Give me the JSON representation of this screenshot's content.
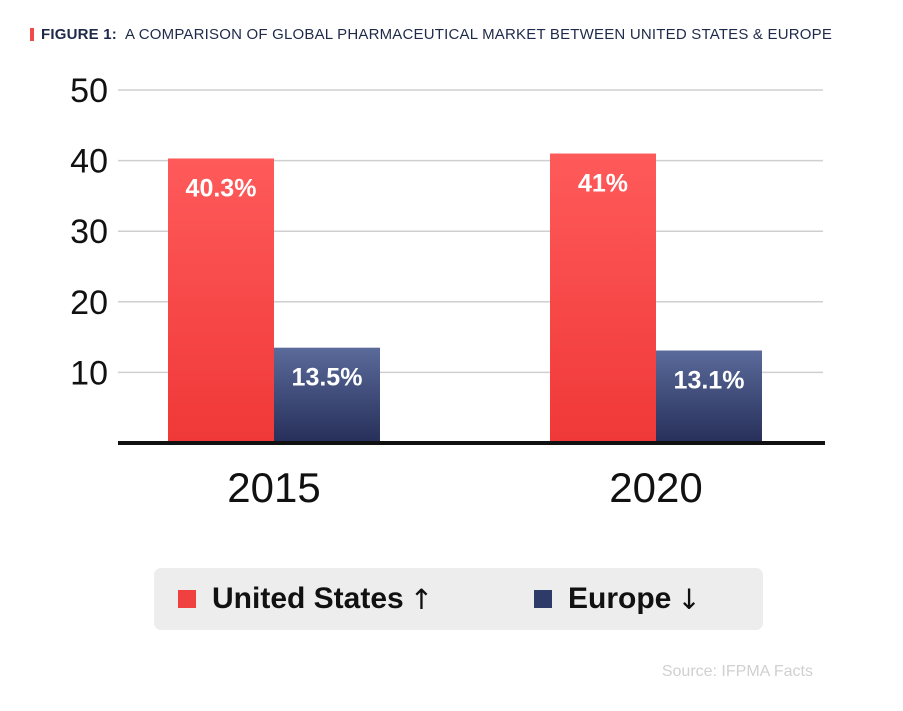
{
  "figure": {
    "label": "FIGURE 1:",
    "title": "A COMPARISON OF GLOBAL PHARMACEUTICAL MARKET BETWEEN UNITED STATES & EUROPE",
    "marker_color": "#f04a4a"
  },
  "chart_data": {
    "type": "bar",
    "title": "A COMPARISON OF GLOBAL PHARMACEUTICAL MARKET BETWEEN UNITED STATES & EUROPE",
    "categories": [
      "2015",
      "2020"
    ],
    "series": [
      {
        "name": "United States",
        "values": [
          40.3,
          41
        ],
        "labels": [
          "40.3%",
          "41%"
        ],
        "trend": "↑",
        "color_top": "#ff5a5a",
        "color_bottom": "#f03838"
      },
      {
        "name": "Europe",
        "values": [
          13.5,
          13.1
        ],
        "labels": [
          "13.5%",
          "13.1%"
        ],
        "trend": "↓",
        "color_top": "#5a6a9a",
        "color_bottom": "#262f59"
      }
    ],
    "ylim": [
      0,
      50
    ],
    "yticks": [
      10,
      20,
      30,
      40,
      50
    ],
    "xlabel": "",
    "ylabel": "",
    "grid": true,
    "legend": "bottom-center"
  },
  "legend": {
    "items": [
      {
        "label": "United States",
        "arrow": "↑",
        "color": "#f04040"
      },
      {
        "label": "Europe",
        "arrow": "↓",
        "color": "#2e3a68"
      }
    ]
  },
  "source": "Source: IFPMA Facts"
}
